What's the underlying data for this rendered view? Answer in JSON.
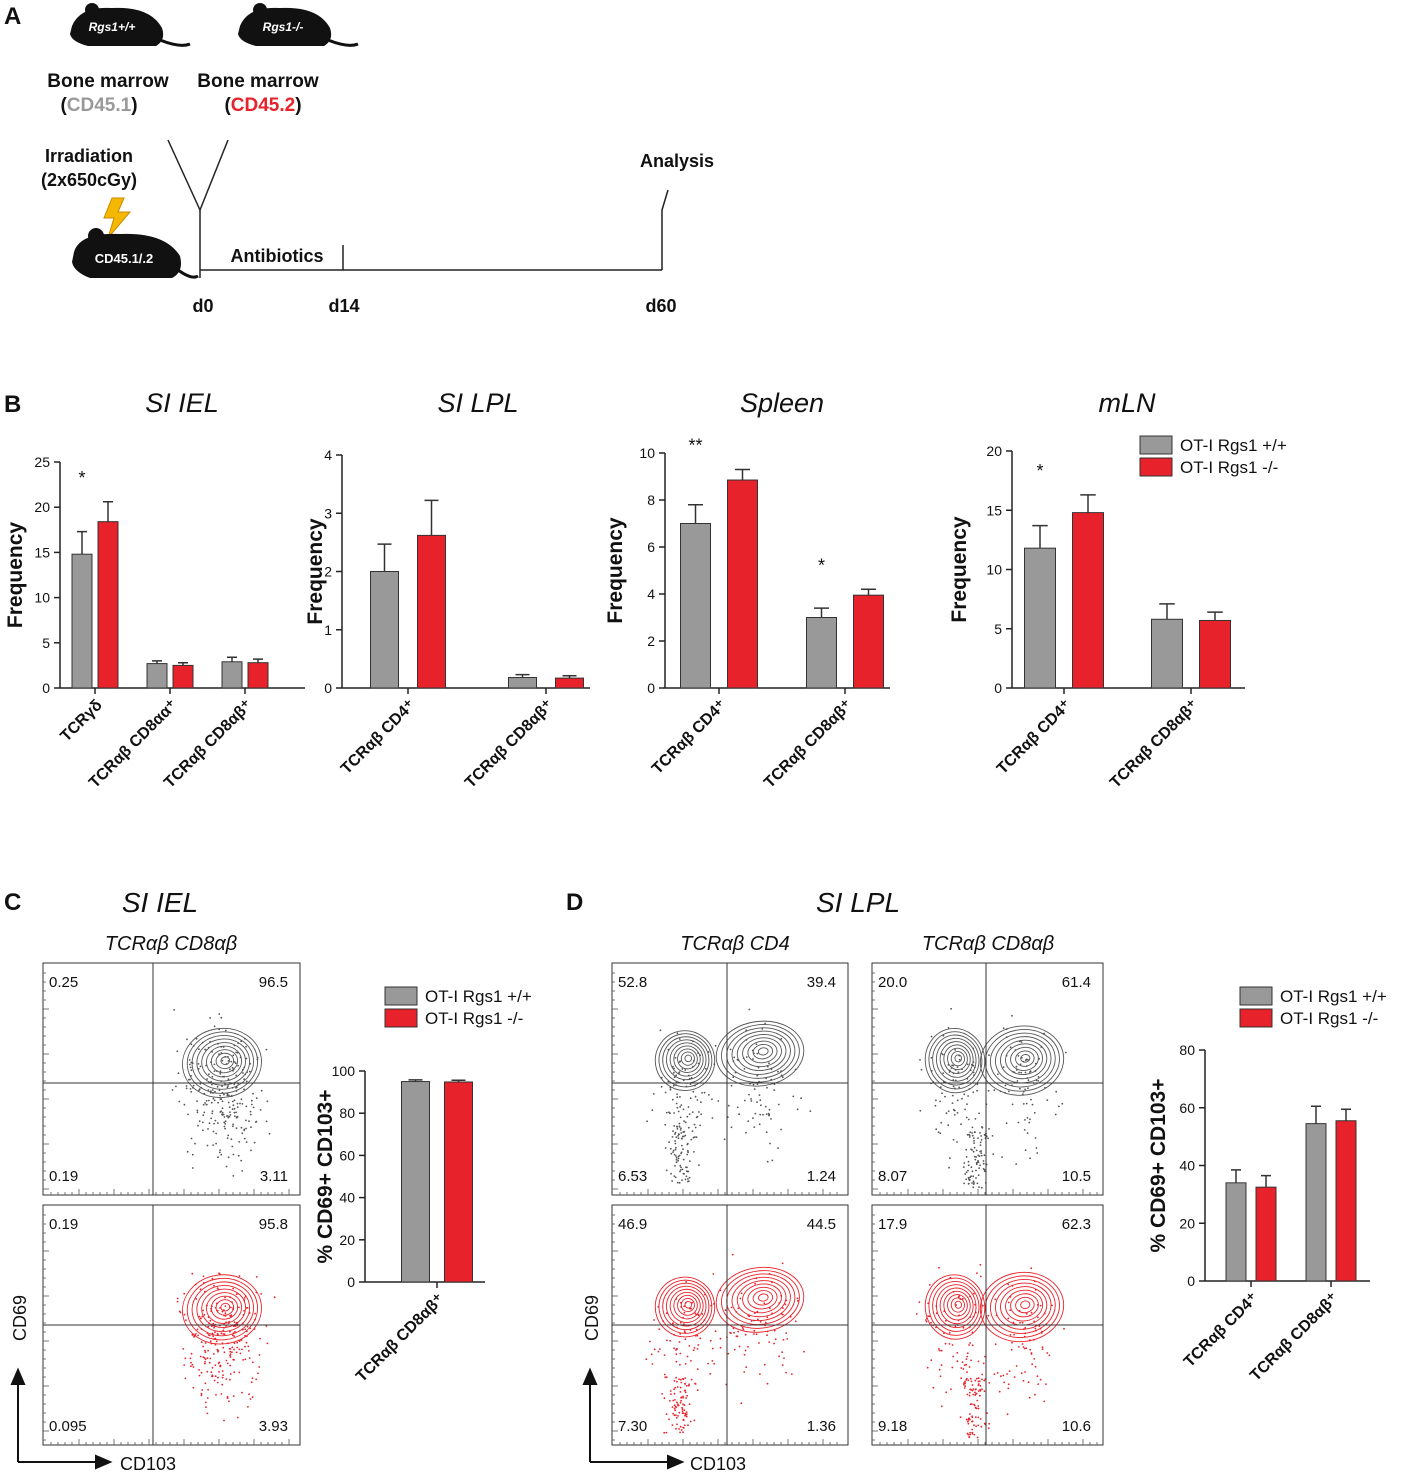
{
  "panel_labels": [
    "A",
    "B",
    "C",
    "D"
  ],
  "panel_a": {
    "mouse_left": "Rgs1+/+",
    "mouse_right": "Rgs1-/-",
    "donor_left": "Bone marrow",
    "donor_right": "Bone marrow",
    "marker_left": [
      "(",
      "CD45.1",
      ")"
    ],
    "marker_right": [
      "(",
      "CD45.2",
      ")"
    ],
    "irradiation": "Irradiation",
    "dose": "(2x650cGy)",
    "recipient": "CD45.1/.2",
    "antibiotics": "Antibiotics",
    "analysis": "Analysis",
    "days": [
      "d0",
      "d14",
      "d60"
    ]
  },
  "chart_data": [
    {
      "type": "bar",
      "title": "SI IEL",
      "ylabel": "Frequency",
      "categories": [
        "TCRγδ",
        "TCRαβ CD8αα⁺",
        "TCRαβ CD8αβ⁺"
      ],
      "series": [
        {
          "name": "OT-I Rgs1 +/+",
          "color": "#999999",
          "values": [
            14.8,
            2.7,
            2.9
          ],
          "errors": [
            2.5,
            0.3,
            0.5
          ]
        },
        {
          "name": "OT-I Rgs1 -/-",
          "color": "#e8222a",
          "values": [
            18.4,
            2.5,
            2.8
          ],
          "errors": [
            2.2,
            0.3,
            0.4
          ]
        }
      ],
      "ylim": [
        0,
        25
      ],
      "yticks": [
        0,
        5,
        10,
        15,
        20,
        25
      ],
      "significance": [
        "*",
        null,
        null
      ]
    },
    {
      "type": "bar",
      "title": "SI LPL",
      "ylabel": "Frequency",
      "categories": [
        "TCRαβ CD4⁺",
        "TCRαβ CD8αβ⁺"
      ],
      "series": [
        {
          "name": "OT-I Rgs1 +/+",
          "color": "#999999",
          "values": [
            2.0,
            0.18
          ],
          "errors": [
            0.47,
            0.05
          ]
        },
        {
          "name": "OT-I Rgs1 -/-",
          "color": "#e8222a",
          "values": [
            2.62,
            0.17
          ],
          "errors": [
            0.6,
            0.04
          ]
        }
      ],
      "ylim": [
        0,
        4
      ],
      "yticks": [
        0,
        1,
        2,
        3,
        4
      ],
      "significance": [
        null,
        null
      ]
    },
    {
      "type": "bar",
      "title": "Spleen",
      "ylabel": "Frequency",
      "categories": [
        "TCRαβ CD4⁺",
        "TCRαβ CD8αβ⁺"
      ],
      "series": [
        {
          "name": "OT-I Rgs1 +/+",
          "color": "#999999",
          "values": [
            7.0,
            3.0
          ],
          "errors": [
            0.8,
            0.4
          ]
        },
        {
          "name": "OT-I Rgs1 -/-",
          "color": "#e8222a",
          "values": [
            8.85,
            3.95
          ],
          "errors": [
            0.45,
            0.25
          ]
        }
      ],
      "ylim": [
        0,
        10
      ],
      "yticks": [
        0,
        2,
        4,
        6,
        8,
        10
      ],
      "significance": [
        "**",
        "*"
      ]
    },
    {
      "type": "bar",
      "title": "mLN",
      "ylabel": "Frequency",
      "categories": [
        "TCRαβ CD4⁺",
        "TCRαβ  CD8αβ⁺"
      ],
      "series": [
        {
          "name": "OT-I Rgs1 +/+",
          "color": "#999999",
          "values": [
            11.8,
            5.8
          ],
          "errors": [
            1.9,
            1.3
          ]
        },
        {
          "name": "OT-I Rgs1 -/-",
          "color": "#e8222a",
          "values": [
            14.8,
            5.7
          ],
          "errors": [
            1.5,
            0.7
          ]
        }
      ],
      "ylim": [
        0,
        20
      ],
      "yticks": [
        0,
        5,
        10,
        15,
        20
      ],
      "significance": [
        "*",
        null
      ],
      "legend": "upper right"
    },
    {
      "type": "bar",
      "ylabel": "% CD69+ CD103+",
      "categories": [
        "TCRαβ CD8αβ⁺"
      ],
      "series": [
        {
          "name": "OT-I Rgs1 +/+",
          "color": "#999999",
          "values": [
            95.0
          ],
          "errors": [
            0.8
          ]
        },
        {
          "name": "OT-I Rgs1 -/-",
          "color": "#e8222a",
          "values": [
            94.8
          ],
          "errors": [
            0.8
          ]
        }
      ],
      "ylim": [
        0,
        100
      ],
      "yticks": [
        0,
        20,
        40,
        60,
        80,
        100
      ],
      "significance": [
        null
      ],
      "legend": "top"
    },
    {
      "type": "bar",
      "ylabel": "% CD69+ CD103+",
      "categories": [
        "TCRαβ CD4⁺",
        "TCRαβ CD8αβ⁺"
      ],
      "series": [
        {
          "name": "OT-I Rgs1 +/+",
          "color": "#999999",
          "values": [
            34.0,
            54.5
          ],
          "errors": [
            4.5,
            6.0
          ]
        },
        {
          "name": "OT-I Rgs1 -/-",
          "color": "#e8222a",
          "values": [
            32.5,
            55.5
          ],
          "errors": [
            4.0,
            4.0
          ]
        }
      ],
      "ylim": [
        0,
        80
      ],
      "yticks": [
        0,
        20,
        40,
        60,
        80
      ],
      "significance": [
        null,
        null
      ],
      "legend": "top"
    }
  ],
  "flow": {
    "c_title": "SI IEL",
    "d_title": "SI LPL",
    "y_label": "CD69",
    "x_label": "CD103",
    "plots": [
      {
        "title": "TCRαβ CD8αβ",
        "rows": [
          [
            "0.25",
            "96.5",
            "0.19",
            "3.11"
          ],
          [
            "0.19",
            "95.8",
            "0.095",
            "3.93"
          ]
        ]
      },
      {
        "title": "TCRαβ CD4",
        "rows": [
          [
            "52.8",
            "39.4",
            "6.53",
            "1.24"
          ],
          [
            "46.9",
            "44.5",
            "7.30",
            "1.36"
          ]
        ]
      },
      {
        "title": "TCRαβ CD8αβ",
        "rows": [
          [
            "20.0",
            "61.4",
            "8.07",
            "10.5"
          ],
          [
            "17.9",
            "62.3",
            "9.18",
            "10.6"
          ]
        ]
      }
    ]
  }
}
